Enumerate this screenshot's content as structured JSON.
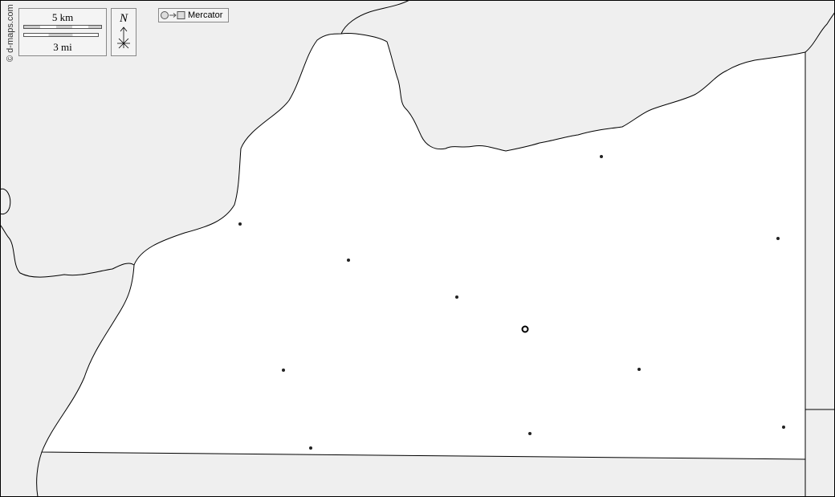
{
  "copyright": "© d-maps.com",
  "scale": {
    "km_label": "5 km",
    "mi_label": "3 mi"
  },
  "north": {
    "label": "N",
    "icon": "compass-rose-icon"
  },
  "projection": {
    "label": "Mercator",
    "icon": "circle-to-square-icon"
  },
  "colors": {
    "land_inside": "#ffffff",
    "land_outside": "#efefef",
    "border": "#000000"
  },
  "places": [
    {
      "type": "town"
    },
    {
      "type": "town"
    },
    {
      "type": "town"
    },
    {
      "type": "town"
    },
    {
      "type": "town"
    },
    {
      "type": "capital"
    },
    {
      "type": "town"
    },
    {
      "type": "town"
    },
    {
      "type": "town"
    },
    {
      "type": "town"
    },
    {
      "type": "town"
    }
  ]
}
